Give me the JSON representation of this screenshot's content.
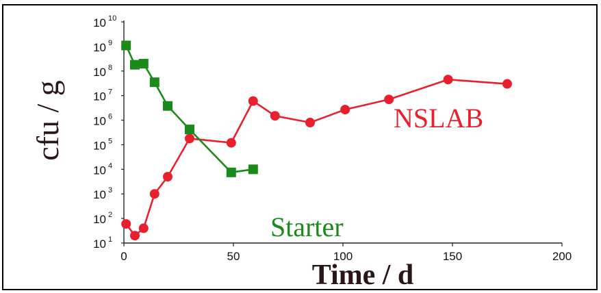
{
  "chart_data": {
    "type": "line",
    "xlabel": "Time / d",
    "ylabel": "cfu / g",
    "xlim": [
      0,
      200
    ],
    "xticks": [
      "0",
      "50",
      "100",
      "150",
      "200"
    ],
    "xtick_values": [
      0,
      50,
      100,
      150,
      200
    ],
    "yscale": "log",
    "ylim": [
      10.0,
      10000000000.0
    ],
    "yticks": [
      {
        "base": "10",
        "exp": "1"
      },
      {
        "base": "10",
        "exp": "2"
      },
      {
        "base": "10",
        "exp": "3"
      },
      {
        "base": "10",
        "exp": "4"
      },
      {
        "base": "10",
        "exp": "5"
      },
      {
        "base": "10",
        "exp": "6"
      },
      {
        "base": "10",
        "exp": "7"
      },
      {
        "base": "10",
        "exp": "8"
      },
      {
        "base": "10",
        "exp": "9"
      },
      {
        "base": "10",
        "exp": "10"
      }
    ],
    "grid": false,
    "series": [
      {
        "name": "NSLAB",
        "color": "#e8202e",
        "marker": "circle",
        "x": [
          1,
          5,
          9,
          14,
          20,
          30,
          49,
          59,
          69,
          85,
          101,
          121,
          148,
          175
        ],
        "y": [
          60,
          20,
          40,
          1000,
          5000,
          180000,
          120000,
          6000000,
          1500000,
          800000,
          2700000,
          7000000,
          45000000,
          30000000
        ]
      },
      {
        "name": "Starter",
        "color": "#1a8a1a",
        "marker": "square",
        "x": [
          1,
          5,
          9,
          14,
          20,
          30,
          49,
          59
        ],
        "y": [
          1100000000,
          180000000,
          200000000,
          35000000,
          3800000,
          420000,
          7500,
          10000
        ]
      }
    ]
  }
}
